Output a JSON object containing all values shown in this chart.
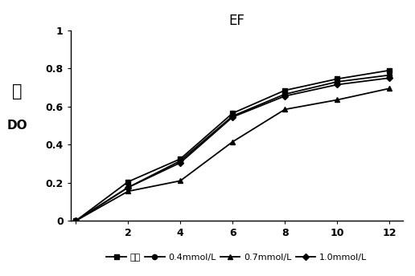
{
  "title": "EF",
  "ylabel_chinese": "值",
  "ylabel_english": "DO",
  "x_values": [
    0,
    2,
    4,
    6,
    8,
    10,
    12
  ],
  "series": [
    {
      "label": "空白",
      "marker": "s",
      "values": [
        0,
        0.205,
        0.325,
        0.565,
        0.685,
        0.745,
        0.79
      ],
      "linestyle": "-"
    },
    {
      "label": "0.4mmol/L",
      "marker": "o",
      "values": [
        0,
        0.175,
        0.315,
        0.55,
        0.665,
        0.73,
        0.765
      ],
      "linestyle": "-"
    },
    {
      "label": "0.7mmol/L",
      "marker": "^",
      "values": [
        0,
        0.155,
        0.21,
        0.415,
        0.585,
        0.635,
        0.695
      ],
      "linestyle": "-"
    },
    {
      "label": "1.0mmol/L",
      "marker": "D",
      "values": [
        0,
        0.175,
        0.305,
        0.545,
        0.655,
        0.715,
        0.75
      ],
      "linestyle": "-"
    }
  ],
  "xlim_min": -0.2,
  "xlim_max": 12.5,
  "ylim": [
    0,
    1.0
  ],
  "yticks": [
    0,
    0.2,
    0.4,
    0.6,
    0.8,
    1
  ],
  "xticks": [
    0,
    2,
    4,
    6,
    8,
    10,
    12
  ],
  "line_color": "#000000",
  "background_color": "#ffffff",
  "title_fontsize": 12,
  "tick_fontsize": 9,
  "legend_fontsize": 8,
  "linewidth": 1.3,
  "markersize": 4.5
}
